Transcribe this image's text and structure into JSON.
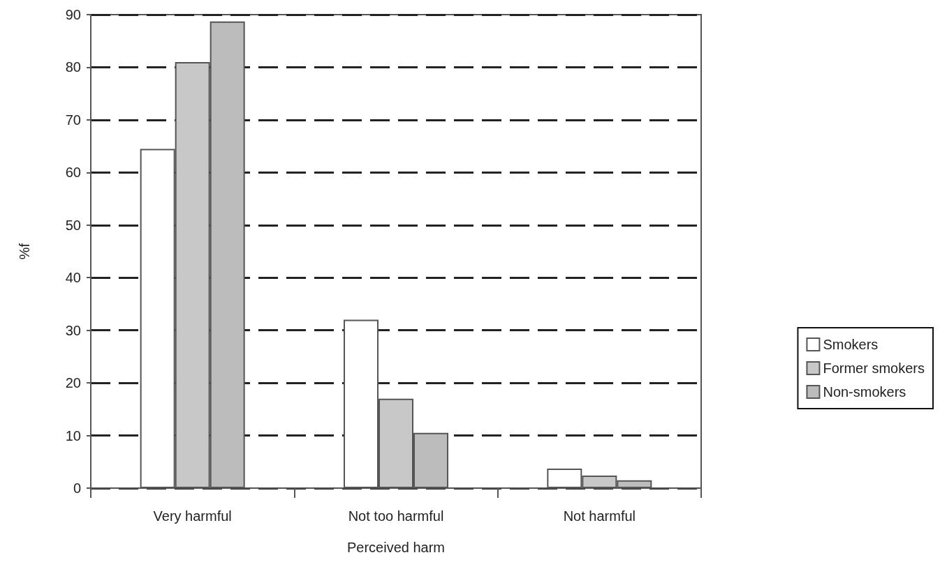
{
  "chart_data": {
    "type": "bar",
    "xlabel": "Perceived harm",
    "ylabel": "%f",
    "categories": [
      "Very harmful",
      "Not too harmful",
      "Not harmful"
    ],
    "series": [
      {
        "name": "Smokers",
        "color": "#ffffff",
        "values": [
          64.5,
          32,
          3.7
        ]
      },
      {
        "name": "Former smokers",
        "color": "#c8c8c8",
        "values": [
          81,
          17,
          2.4
        ]
      },
      {
        "name": "Non-smokers",
        "color": "#bcbcbc",
        "values": [
          88.7,
          10.5,
          1.5
        ]
      }
    ],
    "ylim": [
      0,
      90
    ],
    "yticks": [
      0,
      10,
      20,
      30,
      40,
      50,
      60,
      70,
      80,
      90
    ],
    "grid": "y",
    "legend": "right"
  }
}
